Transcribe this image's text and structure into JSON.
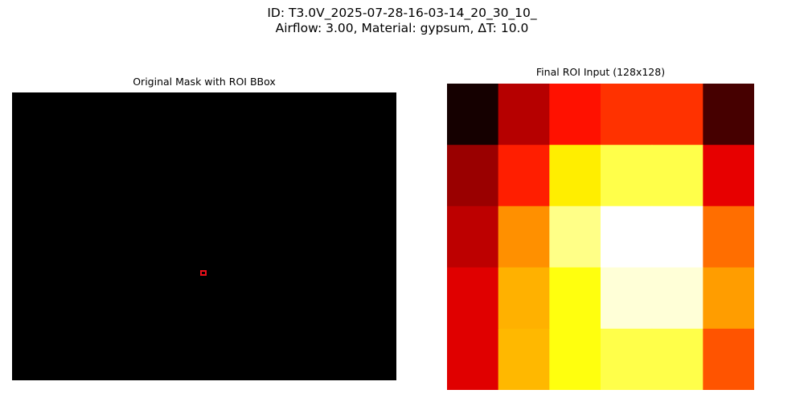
{
  "figure": {
    "title_line1": "ID: T3.0V_2025-07-28-16-03-14_20_30_10_",
    "title_line2": "Airflow: 3.00, Material: gypsum, ΔT: 10.0"
  },
  "chart_data": [
    {
      "type": "heatmap",
      "title": "Original Mask with ROI BBox",
      "description_values": {
        "mask": "all-zero (black)",
        "bbox_color": "#e8101a",
        "bbox_center_fraction": [
          0.498,
          0.627
        ],
        "bbox_size_fraction": [
          0.016,
          0.02
        ]
      },
      "axes_visible": false
    },
    {
      "type": "heatmap",
      "title": "Final ROI Input (128x128)",
      "colormap": "hot",
      "grid": false,
      "axes_visible": false,
      "rows": 5,
      "cols": 6,
      "values": [
        [
          0.03,
          0.26,
          0.39,
          0.44,
          0.44,
          0.1
        ],
        [
          0.22,
          0.41,
          0.72,
          0.82,
          0.82,
          0.33
        ],
        [
          0.27,
          0.58,
          0.88,
          1.0,
          1.0,
          0.53
        ],
        [
          0.32,
          0.63,
          0.76,
          0.96,
          0.96,
          0.6
        ],
        [
          0.32,
          0.64,
          0.76,
          0.82,
          0.82,
          0.49
        ]
      ]
    }
  ]
}
